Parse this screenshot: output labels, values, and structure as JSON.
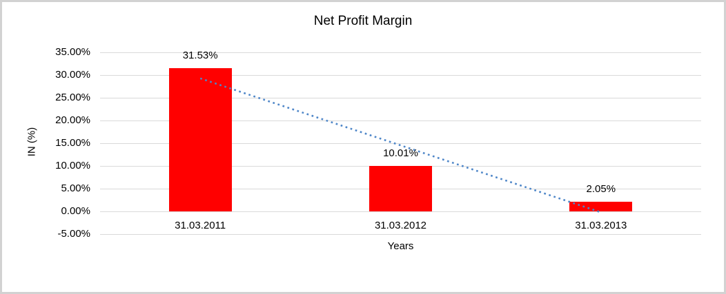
{
  "chart_data": {
    "type": "bar",
    "title": "Net Profit Margin",
    "xlabel": "Years",
    "ylabel": "IN (%)",
    "categories": [
      "31.03.2011",
      "31.03.2012",
      "31.03.2013"
    ],
    "values": [
      31.53,
      10.01,
      2.05
    ],
    "data_labels": [
      "31.53%",
      "10.01%",
      "2.05%"
    ],
    "yticks": [
      {
        "value": 35,
        "label": "35.00%"
      },
      {
        "value": 30,
        "label": "30.00%"
      },
      {
        "value": 25,
        "label": "25.00%"
      },
      {
        "value": 20,
        "label": "20.00%"
      },
      {
        "value": 15,
        "label": "15.00%"
      },
      {
        "value": 10,
        "label": "10.00%"
      },
      {
        "value": 5,
        "label": "5.00%"
      },
      {
        "value": 0,
        "label": "0.00%"
      },
      {
        "value": -5,
        "label": "-5.00%"
      }
    ],
    "ylim": [
      -5,
      35
    ],
    "grid": true,
    "legend": "none",
    "bar_color": "#FF0000",
    "gridline_color": "#D9D9D9",
    "text_color": "#000000",
    "frame_border_color": "#D2D2D2",
    "trendline": {
      "type": "linear",
      "style": "dotted",
      "color": "#4E86C8",
      "start_value": 29.27,
      "end_value": -0.21
    }
  }
}
